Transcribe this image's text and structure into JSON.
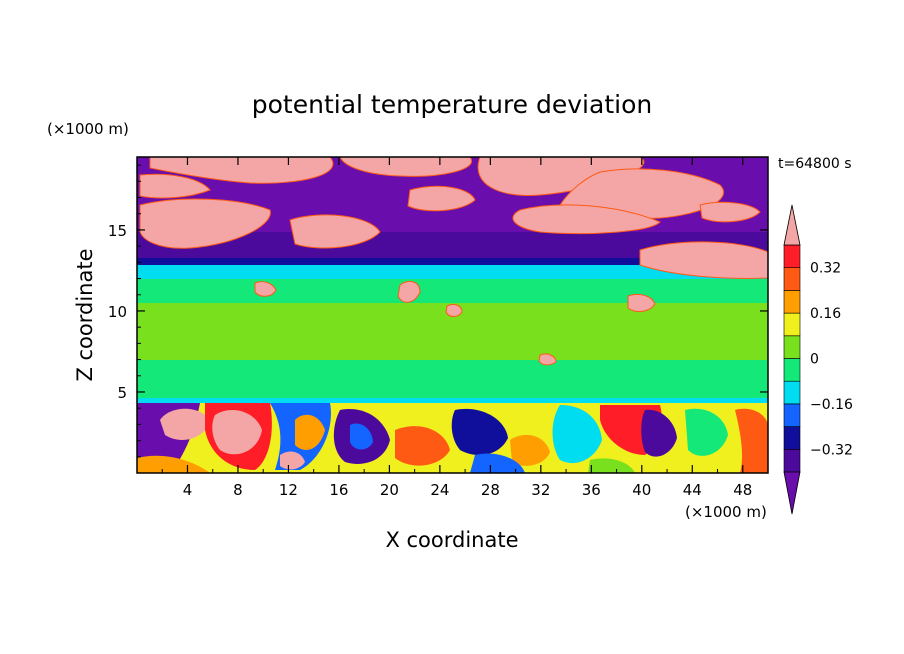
{
  "chart_data": {
    "type": "heatmap",
    "title": "potential temperature deviation",
    "xlabel": "X coordinate",
    "ylabel": "Z coordinate",
    "x_units": "(×1000 m)",
    "y_units": "(×1000 m)",
    "time_label": "t=64800 s",
    "xlim": [
      0,
      50
    ],
    "ylim": [
      0,
      19.5
    ],
    "x_ticks": [
      4,
      8,
      12,
      16,
      20,
      24,
      28,
      32,
      36,
      40,
      44,
      48
    ],
    "y_ticks": [
      5,
      10,
      15
    ],
    "colorbar": {
      "levels": [
        -0.4,
        -0.32,
        -0.24,
        -0.16,
        -0.08,
        0,
        0.08,
        0.16,
        0.24,
        0.32,
        0.4
      ],
      "labeled_ticks": [
        "0.32",
        "0.16",
        "0",
        "−0.16",
        "−0.32"
      ],
      "labeled_values": [
        0.32,
        0.16,
        0,
        -0.16,
        -0.32
      ],
      "colors_bottom_to_top": [
        "#4b0a9c",
        "#0f0f9c",
        "#1464ff",
        "#00dcf0",
        "#14e878",
        "#78e01c",
        "#f0f01e",
        "#ff9e00",
        "#ff5a14",
        "#ff1e28"
      ],
      "under_color": "#6a0dad",
      "over_color": "#f4a6a6"
    },
    "layers": [
      {
        "z_range": [
          13.5,
          19.5
        ],
        "description_values": "mostly <= -0.4 with patches >= 0.4"
      },
      {
        "z_range": [
          12.5,
          13.5
        ],
        "dominant_value": -0.16
      },
      {
        "z_range": [
          4.5,
          12.5
        ],
        "dominant_value": 0.04
      },
      {
        "z_range": [
          0,
          4.5
        ],
        "dominant_value": 0.0,
        "note": "mixed turbulent field, range -0.4 to 0.4"
      }
    ]
  }
}
